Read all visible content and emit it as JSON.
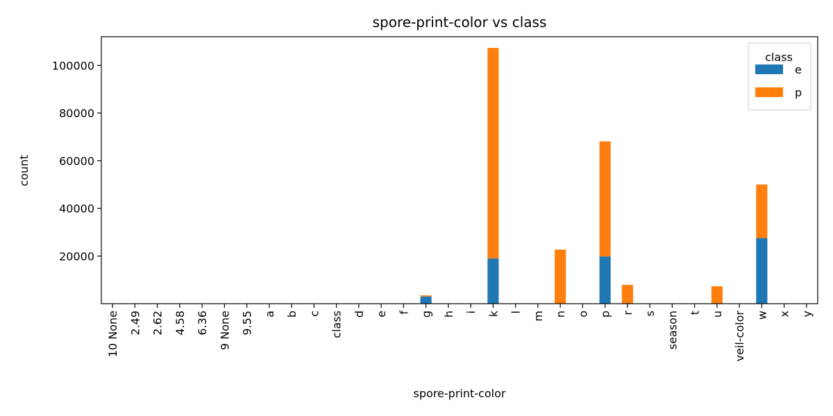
{
  "chart_data": {
    "type": "bar",
    "stacked": true,
    "title": "spore-print-color vs class",
    "xlabel": "spore-print-color",
    "ylabel": "count",
    "categories": [
      "10 None",
      "2.49",
      "2.62",
      "4.58",
      "6.36",
      "9 None",
      "9.55",
      "a",
      "b",
      "c",
      "class",
      "d",
      "e",
      "f",
      "g",
      "h",
      "i",
      "k",
      "l",
      "m",
      "n",
      "o",
      "p",
      "r",
      "s",
      "season",
      "t",
      "u",
      "veil-color",
      "w",
      "x",
      "y"
    ],
    "series": [
      {
        "name": "e",
        "color": "#1f77b4",
        "values": [
          0,
          0,
          0,
          0,
          0,
          0,
          0,
          0,
          0,
          0,
          0,
          0,
          0,
          0,
          3000,
          0,
          0,
          19000,
          0,
          0,
          0,
          0,
          19800,
          0,
          0,
          0,
          0,
          0,
          0,
          27500,
          0,
          0
        ]
      },
      {
        "name": "p",
        "color": "#ff7f0e",
        "values": [
          0,
          0,
          0,
          0,
          0,
          0,
          0,
          0,
          0,
          0,
          0,
          0,
          0,
          0,
          500,
          0,
          0,
          88300,
          0,
          0,
          22700,
          0,
          48300,
          7900,
          0,
          0,
          0,
          7300,
          0,
          22500,
          0,
          0
        ]
      }
    ],
    "yticks": [
      20000,
      40000,
      60000,
      80000,
      100000
    ],
    "ytick_labels": [
      "20000",
      "40000",
      "60000",
      "80000",
      "100000"
    ],
    "ylim": [
      0,
      112000
    ],
    "legend": {
      "title": "class",
      "position": "top-right"
    },
    "grid": false
  }
}
